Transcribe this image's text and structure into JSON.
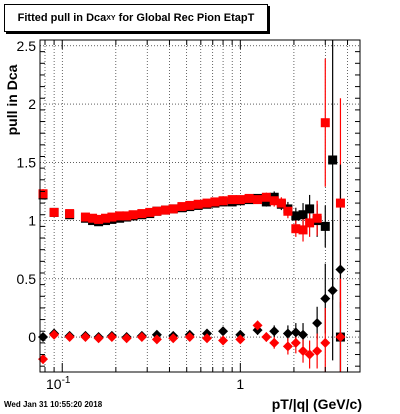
{
  "title_main": "Fitted pull in Dca",
  "title_sub": "XY",
  "title_tail": " for Global Rec Pion EtapT",
  "timestamp": "Wed Jan 31 10:55:20 2018",
  "colors": {
    "black": "#000000",
    "red": "#ff0000",
    "grid": "#000000"
  },
  "chart_data": {
    "type": "scatter",
    "title": "Fitted pull in Dca_XY for Global Rec Pion EtapT",
    "xlabel": "pT/|q| (GeV/c)",
    "ylabel": "pull in Dca",
    "x_scale": "log",
    "xlim": [
      0.075,
      4.7
    ],
    "ylim": [
      -0.3,
      2.55
    ],
    "grid": true,
    "x_ticks": [
      {
        "value": 0.1,
        "label": "10",
        "exp": "-1"
      },
      {
        "value": 1,
        "label": "1",
        "exp": ""
      }
    ],
    "y_ticks": [
      {
        "value": 0,
        "label": "0"
      },
      {
        "value": 0.5,
        "label": "0.5"
      },
      {
        "value": 1,
        "label": "1"
      },
      {
        "value": 1.5,
        "label": "1.5"
      },
      {
        "value": 2,
        "label": "2"
      },
      {
        "value": 2.5,
        "label": "2.5"
      }
    ],
    "series": [
      {
        "color": "black",
        "marker": "square",
        "points": [
          {
            "x": 0.078,
            "y": 1.22,
            "e": 0.04
          },
          {
            "x": 0.09,
            "y": 1.07,
            "e": 0.02
          },
          {
            "x": 0.11,
            "y": 1.05,
            "e": 0.02
          },
          {
            "x": 0.135,
            "y": 1.02,
            "e": 0.02
          },
          {
            "x": 0.148,
            "y": 1.0,
            "e": 0.02
          },
          {
            "x": 0.16,
            "y": 0.99,
            "e": 0.02
          },
          {
            "x": 0.175,
            "y": 1.0,
            "e": 0.02
          },
          {
            "x": 0.19,
            "y": 1.01,
            "e": 0.02
          },
          {
            "x": 0.21,
            "y": 1.02,
            "e": 0.02
          },
          {
            "x": 0.23,
            "y": 1.03,
            "e": 0.02
          },
          {
            "x": 0.25,
            "y": 1.04,
            "e": 0.02
          },
          {
            "x": 0.28,
            "y": 1.05,
            "e": 0.02
          },
          {
            "x": 0.31,
            "y": 1.06,
            "e": 0.02
          },
          {
            "x": 0.34,
            "y": 1.08,
            "e": 0.02
          },
          {
            "x": 0.38,
            "y": 1.09,
            "e": 0.02
          },
          {
            "x": 0.42,
            "y": 1.1,
            "e": 0.02
          },
          {
            "x": 0.47,
            "y": 1.11,
            "e": 0.02
          },
          {
            "x": 0.52,
            "y": 1.12,
            "e": 0.02
          },
          {
            "x": 0.58,
            "y": 1.13,
            "e": 0.02
          },
          {
            "x": 0.65,
            "y": 1.14,
            "e": 0.02
          },
          {
            "x": 0.72,
            "y": 1.15,
            "e": 0.02
          },
          {
            "x": 0.8,
            "y": 1.16,
            "e": 0.03
          },
          {
            "x": 0.9,
            "y": 1.16,
            "e": 0.03
          },
          {
            "x": 1.0,
            "y": 1.17,
            "e": 0.03
          },
          {
            "x": 1.12,
            "y": 1.18,
            "e": 0.03
          },
          {
            "x": 1.25,
            "y": 1.19,
            "e": 0.03
          },
          {
            "x": 1.4,
            "y": 1.16,
            "e": 0.04
          },
          {
            "x": 1.55,
            "y": 1.2,
            "e": 0.05
          },
          {
            "x": 1.7,
            "y": 1.14,
            "e": 0.05
          },
          {
            "x": 1.85,
            "y": 1.1,
            "e": 0.06
          },
          {
            "x": 2.05,
            "y": 1.04,
            "e": 0.07
          },
          {
            "x": 2.25,
            "y": 1.05,
            "e": 0.1
          },
          {
            "x": 2.45,
            "y": 1.1,
            "e": 0.12
          },
          {
            "x": 2.7,
            "y": 1.0,
            "e": 0.14
          },
          {
            "x": 3.0,
            "y": 0.95,
            "e": 0.18
          },
          {
            "x": 3.3,
            "y": 1.52,
            "e": 1.2
          },
          {
            "x": 3.65,
            "y": 0.0,
            "e": 0.3
          }
        ]
      },
      {
        "color": "red",
        "marker": "square",
        "points": [
          {
            "x": 0.078,
            "y": 1.23,
            "e": 0.04
          },
          {
            "x": 0.09,
            "y": 1.07,
            "e": 0.02
          },
          {
            "x": 0.11,
            "y": 1.06,
            "e": 0.02
          },
          {
            "x": 0.135,
            "y": 1.03,
            "e": 0.02
          },
          {
            "x": 0.148,
            "y": 1.02,
            "e": 0.02
          },
          {
            "x": 0.16,
            "y": 1.01,
            "e": 0.02
          },
          {
            "x": 0.175,
            "y": 1.02,
            "e": 0.02
          },
          {
            "x": 0.19,
            "y": 1.03,
            "e": 0.02
          },
          {
            "x": 0.21,
            "y": 1.04,
            "e": 0.02
          },
          {
            "x": 0.23,
            "y": 1.04,
            "e": 0.02
          },
          {
            "x": 0.25,
            "y": 1.05,
            "e": 0.02
          },
          {
            "x": 0.28,
            "y": 1.06,
            "e": 0.02
          },
          {
            "x": 0.31,
            "y": 1.07,
            "e": 0.02
          },
          {
            "x": 0.34,
            "y": 1.08,
            "e": 0.02
          },
          {
            "x": 0.38,
            "y": 1.09,
            "e": 0.02
          },
          {
            "x": 0.42,
            "y": 1.1,
            "e": 0.02
          },
          {
            "x": 0.47,
            "y": 1.12,
            "e": 0.02
          },
          {
            "x": 0.52,
            "y": 1.13,
            "e": 0.02
          },
          {
            "x": 0.58,
            "y": 1.14,
            "e": 0.02
          },
          {
            "x": 0.65,
            "y": 1.15,
            "e": 0.02
          },
          {
            "x": 0.72,
            "y": 1.16,
            "e": 0.02
          },
          {
            "x": 0.8,
            "y": 1.17,
            "e": 0.03
          },
          {
            "x": 0.9,
            "y": 1.18,
            "e": 0.03
          },
          {
            "x": 1.0,
            "y": 1.18,
            "e": 0.03
          },
          {
            "x": 1.12,
            "y": 1.19,
            "e": 0.03
          },
          {
            "x": 1.25,
            "y": 1.18,
            "e": 0.03
          },
          {
            "x": 1.4,
            "y": 1.2,
            "e": 0.04
          },
          {
            "x": 1.55,
            "y": 1.17,
            "e": 0.05
          },
          {
            "x": 1.7,
            "y": 1.15,
            "e": 0.05
          },
          {
            "x": 1.85,
            "y": 1.08,
            "e": 0.06
          },
          {
            "x": 2.05,
            "y": 0.93,
            "e": 0.07
          },
          {
            "x": 2.25,
            "y": 0.92,
            "e": 0.1
          },
          {
            "x": 2.45,
            "y": 0.98,
            "e": 0.12
          },
          {
            "x": 2.7,
            "y": 1.02,
            "e": 0.15
          },
          {
            "x": 3.0,
            "y": 1.84,
            "e": 0.55
          },
          {
            "x": 3.65,
            "y": 1.15,
            "e": 0.9
          }
        ]
      },
      {
        "color": "black",
        "marker": "diamond",
        "points": [
          {
            "x": 0.078,
            "y": 0.0,
            "e": 0.03
          },
          {
            "x": 0.09,
            "y": 0.03,
            "e": 0.02
          },
          {
            "x": 0.11,
            "y": 0.01,
            "e": 0.02
          },
          {
            "x": 0.135,
            "y": 0.01,
            "e": 0.02
          },
          {
            "x": 0.16,
            "y": 0.0,
            "e": 0.02
          },
          {
            "x": 0.19,
            "y": 0.01,
            "e": 0.02
          },
          {
            "x": 0.23,
            "y": 0.0,
            "e": 0.02
          },
          {
            "x": 0.28,
            "y": 0.01,
            "e": 0.02
          },
          {
            "x": 0.34,
            "y": 0.02,
            "e": 0.02
          },
          {
            "x": 0.42,
            "y": 0.01,
            "e": 0.02
          },
          {
            "x": 0.52,
            "y": 0.02,
            "e": 0.02
          },
          {
            "x": 0.65,
            "y": 0.03,
            "e": 0.02
          },
          {
            "x": 0.8,
            "y": 0.05,
            "e": 0.03
          },
          {
            "x": 1.0,
            "y": 0.02,
            "e": 0.03
          },
          {
            "x": 1.25,
            "y": 0.06,
            "e": 0.04
          },
          {
            "x": 1.55,
            "y": 0.05,
            "e": 0.05
          },
          {
            "x": 1.85,
            "y": 0.03,
            "e": 0.07
          },
          {
            "x": 2.05,
            "y": 0.04,
            "e": 0.08
          },
          {
            "x": 2.25,
            "y": 0.02,
            "e": 0.1
          },
          {
            "x": 2.7,
            "y": 0.12,
            "e": 0.14
          },
          {
            "x": 3.0,
            "y": 0.33,
            "e": 0.3
          },
          {
            "x": 3.3,
            "y": 0.4,
            "e": 0.6
          },
          {
            "x": 3.65,
            "y": 0.58,
            "e": 0.9
          }
        ]
      },
      {
        "color": "red",
        "marker": "diamond",
        "points": [
          {
            "x": 0.078,
            "y": -0.19,
            "e": 0.04
          },
          {
            "x": 0.09,
            "y": 0.02,
            "e": 0.02
          },
          {
            "x": 0.11,
            "y": 0.0,
            "e": 0.02
          },
          {
            "x": 0.135,
            "y": 0.0,
            "e": 0.02
          },
          {
            "x": 0.16,
            "y": -0.01,
            "e": 0.02
          },
          {
            "x": 0.19,
            "y": 0.0,
            "e": 0.02
          },
          {
            "x": 0.23,
            "y": -0.01,
            "e": 0.02
          },
          {
            "x": 0.28,
            "y": 0.0,
            "e": 0.02
          },
          {
            "x": 0.34,
            "y": -0.02,
            "e": 0.02
          },
          {
            "x": 0.42,
            "y": -0.01,
            "e": 0.02
          },
          {
            "x": 0.52,
            "y": 0.0,
            "e": 0.02
          },
          {
            "x": 0.65,
            "y": -0.01,
            "e": 0.02
          },
          {
            "x": 0.8,
            "y": -0.03,
            "e": 0.03
          },
          {
            "x": 1.0,
            "y": -0.02,
            "e": 0.03
          },
          {
            "x": 1.25,
            "y": 0.1,
            "e": 0.04
          },
          {
            "x": 1.4,
            "y": 0.0,
            "e": 0.04
          },
          {
            "x": 1.55,
            "y": -0.05,
            "e": 0.05
          },
          {
            "x": 1.85,
            "y": -0.08,
            "e": 0.07
          },
          {
            "x": 2.05,
            "y": -0.05,
            "e": 0.09
          },
          {
            "x": 2.25,
            "y": -0.12,
            "e": 0.1
          },
          {
            "x": 2.45,
            "y": -0.15,
            "e": 0.12
          },
          {
            "x": 2.7,
            "y": -0.12,
            "e": 0.15
          },
          {
            "x": 3.0,
            "y": -0.05,
            "e": 0.3
          },
          {
            "x": 3.65,
            "y": 0.0,
            "e": 0.5
          }
        ]
      }
    ]
  }
}
